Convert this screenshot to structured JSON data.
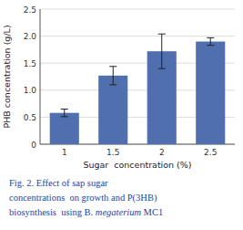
{
  "chart_data": {
    "type": "bar",
    "categories": [
      "1",
      "1.5",
      "2",
      "2.5"
    ],
    "values": [
      0.58,
      1.27,
      1.72,
      1.9
    ],
    "errors": [
      0.07,
      0.17,
      0.32,
      0.07
    ],
    "color": "#4f6faf",
    "xlabel": "Sugar  concentration (%)",
    "ylabel": "PHB concentration (g/L)",
    "ylim": [
      0,
      2.5
    ],
    "yticks": [
      0,
      0.5,
      {
        "value": 1,
        "label": "1.0"
      },
      1.5,
      {
        "value": 2,
        "label": "2.0"
      },
      2.5
    ],
    "grid": true,
    "annotations": [
      "Fig. 2. Effect of sap sugar",
      "concentrations  on growth and P(3HB)",
      [
        "biosynthesis  using B. ",
        "megaterium",
        " MC1"
      ]
    ]
  }
}
